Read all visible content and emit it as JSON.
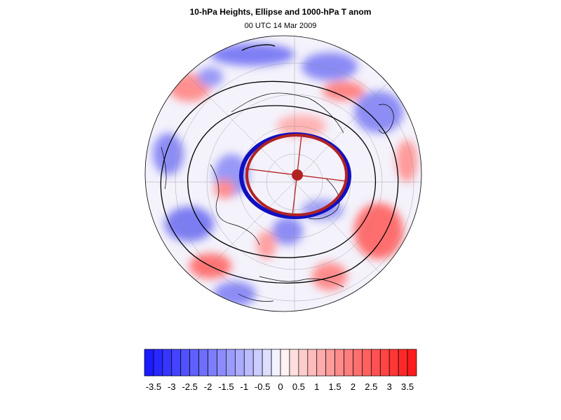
{
  "header": {
    "title": "10-hPa Heights, Ellipse and 1000-hPa T anom",
    "subtitle": "00 UTC 14 Mar 2009"
  },
  "colors": {
    "ellipse_observed": "#1010c0",
    "ellipse_fit": "#b22222",
    "height_contour": "#000000",
    "coastline": "#000000",
    "scale_min": "#1414ff",
    "scale_mid": "#ffffff",
    "scale_max": "#ff1414"
  },
  "colorbar": {
    "min": -3.75,
    "max": 3.75,
    "step": 0.25,
    "labels": [
      "-3.5",
      "-3",
      "-2.5",
      "-2",
      "-1.5",
      "-1",
      "-0.5",
      "0",
      "0.5",
      "1",
      "1.5",
      "2",
      "2.5",
      "3",
      "3.5"
    ]
  }
}
